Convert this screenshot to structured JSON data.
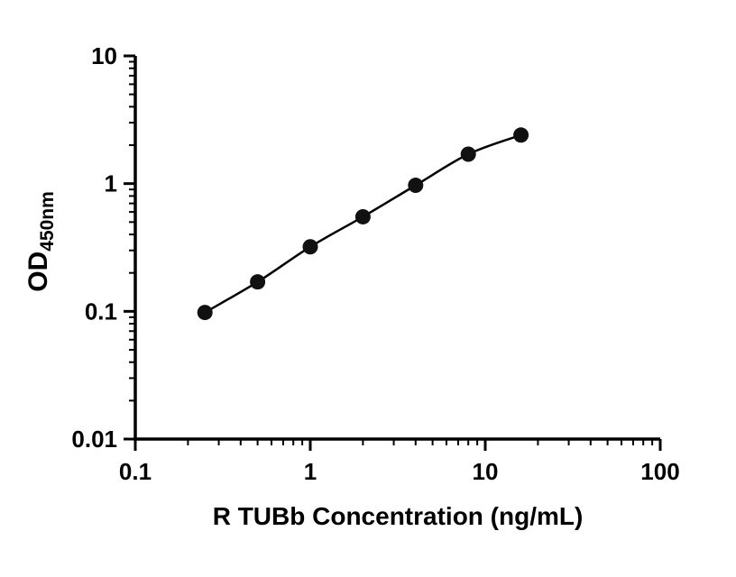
{
  "chart_data": {
    "type": "scatter",
    "subtype": "log-log standard curve with smoothed connecting line",
    "x": [
      0.25,
      0.5,
      1,
      2,
      4,
      8,
      16
    ],
    "y": [
      0.098,
      0.17,
      0.32,
      0.55,
      0.97,
      1.7,
      2.4
    ],
    "title": "",
    "xlabel": "R TUBb Concentration (ng/mL)",
    "ylabel_main": "OD",
    "ylabel_sub": "450nm",
    "xlim": [
      0.1,
      100
    ],
    "ylim": [
      0.01,
      10
    ],
    "x_scale": "log",
    "y_scale": "log",
    "x_tick_values": [
      0.1,
      1,
      10,
      100
    ],
    "x_tick_labels": [
      "0.1",
      "1",
      "10",
      "100"
    ],
    "y_tick_values": [
      0.01,
      0.1,
      1,
      10
    ],
    "y_tick_labels": [
      "0.01",
      "0.1",
      "1",
      "10"
    ],
    "grid": false,
    "legend_position": "none",
    "line_color": "#000000",
    "marker_color": "#111111",
    "axis_color": "#000000",
    "background_color": "#ffffff"
  }
}
